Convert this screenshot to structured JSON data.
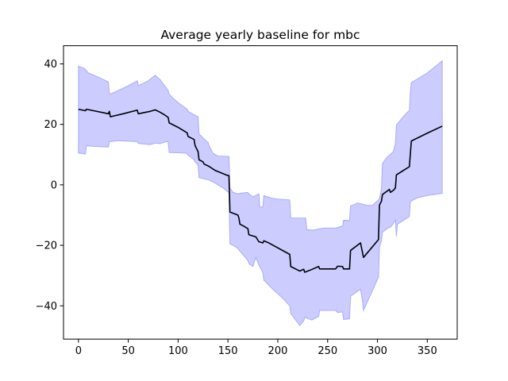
{
  "chart_data": {
    "type": "line",
    "title": "Average yearly baseline for mbc",
    "xlabel": "",
    "ylabel": "",
    "xlim": [
      -15,
      380
    ],
    "ylim": [
      -51,
      46
    ],
    "xticks": [
      0,
      50,
      100,
      150,
      200,
      250,
      300,
      350
    ],
    "yticks": [
      -40,
      -20,
      0,
      20,
      40
    ],
    "grid": false,
    "legend": "none",
    "colors": {
      "line": "#000000",
      "band_fill": "#ccccff",
      "band_edge": "#aaaaff"
    },
    "series": [
      {
        "values": [
          [
            0,
            25
          ],
          [
            7,
            24.5
          ],
          [
            8,
            25
          ],
          [
            30,
            23.5
          ],
          [
            31,
            24.3
          ],
          [
            32,
            22.5
          ],
          [
            45,
            23.5
          ],
          [
            59,
            24.7
          ],
          [
            60,
            23.5
          ],
          [
            72,
            24.3
          ],
          [
            77,
            24.8
          ],
          [
            82,
            24
          ],
          [
            87,
            23
          ],
          [
            90,
            22.3
          ],
          [
            91,
            20.5
          ],
          [
            100,
            19
          ],
          [
            109,
            17.2
          ],
          [
            110,
            16
          ],
          [
            116,
            15
          ],
          [
            117,
            13
          ],
          [
            120,
            11
          ],
          [
            121,
            8.3
          ],
          [
            125,
            7.6
          ],
          [
            126,
            6.9
          ],
          [
            131,
            6.1
          ],
          [
            137,
            4.8
          ],
          [
            148,
            3.3
          ],
          [
            151,
            3
          ],
          [
            152,
            -9
          ],
          [
            160,
            -10
          ],
          [
            161,
            -11
          ],
          [
            162,
            -13
          ],
          [
            165,
            -13.5
          ],
          [
            170,
            -14.5
          ],
          [
            171,
            -16.5
          ],
          [
            178,
            -17.2
          ],
          [
            181,
            -18.8
          ],
          [
            185,
            -19.2
          ],
          [
            186,
            -18.5
          ],
          [
            191,
            -19.2
          ],
          [
            212,
            -23
          ],
          [
            213,
            -27
          ],
          [
            222,
            -28.5
          ],
          [
            226,
            -27.9
          ],
          [
            227,
            -28.9
          ],
          [
            234,
            -28
          ],
          [
            241,
            -27
          ],
          [
            242,
            -27.8
          ],
          [
            258,
            -27.8
          ],
          [
            260,
            -26.9
          ],
          [
            265,
            -27
          ],
          [
            266,
            -27.8
          ],
          [
            272,
            -27.8
          ],
          [
            273,
            -21.7
          ],
          [
            283,
            -19.2
          ],
          [
            286,
            -24
          ],
          [
            301,
            -18.1
          ],
          [
            302,
            -6.7
          ],
          [
            304,
            -5.4
          ],
          [
            305,
            -3.2
          ],
          [
            312,
            -1.5
          ],
          [
            313,
            -2.5
          ],
          [
            316,
            -1.8
          ],
          [
            318,
            -1
          ],
          [
            319,
            3.3
          ],
          [
            332,
            6
          ],
          [
            334,
            14.5
          ],
          [
            350,
            17.1
          ],
          [
            365,
            19.4
          ]
        ]
      },
      {
        "name": "upper_band",
        "values": [
          [
            0,
            39.2
          ],
          [
            6,
            38.5
          ],
          [
            10,
            37
          ],
          [
            20,
            35.6
          ],
          [
            30,
            34
          ],
          [
            31,
            30.5
          ],
          [
            32,
            30
          ],
          [
            40,
            31.2
          ],
          [
            50,
            32.8
          ],
          [
            59,
            34.4
          ],
          [
            60,
            32.8
          ],
          [
            70,
            34.4
          ],
          [
            77,
            36.2
          ],
          [
            82,
            34.8
          ],
          [
            87,
            32.5
          ],
          [
            90,
            31.2
          ],
          [
            91,
            30
          ],
          [
            95,
            28.6
          ],
          [
            100,
            27.2
          ],
          [
            109,
            25
          ],
          [
            110,
            24.3
          ],
          [
            120,
            22.5
          ],
          [
            121,
            16.8
          ],
          [
            130,
            14
          ],
          [
            131,
            13
          ],
          [
            135,
            10.4
          ],
          [
            140,
            9.5
          ],
          [
            151,
            9.4
          ],
          [
            152,
            -1
          ],
          [
            155,
            -2.5
          ],
          [
            161,
            -3
          ],
          [
            162,
            -2.8
          ],
          [
            170,
            -2.5
          ],
          [
            171,
            -3
          ],
          [
            175,
            -4
          ],
          [
            181,
            -3
          ],
          [
            182,
            -7.3
          ],
          [
            185,
            -7.4
          ],
          [
            186,
            -3.6
          ],
          [
            195,
            -4.5
          ],
          [
            200,
            -4.7
          ],
          [
            212,
            -5
          ],
          [
            213,
            -11
          ],
          [
            228,
            -11
          ],
          [
            229,
            -14.8
          ],
          [
            235,
            -15
          ],
          [
            241,
            -14.6
          ],
          [
            246,
            -14.3
          ],
          [
            258,
            -14.3
          ],
          [
            265,
            -13.6
          ],
          [
            266,
            -11.7
          ],
          [
            272,
            -11.8
          ],
          [
            273,
            -7
          ],
          [
            280,
            -6
          ],
          [
            290,
            -6.8
          ],
          [
            295,
            -6.8
          ],
          [
            301,
            -5
          ],
          [
            302,
            -4.5
          ],
          [
            304,
            -1.5
          ],
          [
            305,
            7
          ],
          [
            307,
            8
          ],
          [
            310,
            9.2
          ],
          [
            316,
            11
          ],
          [
            318,
            13.7
          ],
          [
            319,
            19.8
          ],
          [
            325,
            22.2
          ],
          [
            330,
            24
          ],
          [
            332,
            24.5
          ],
          [
            333,
            30.8
          ],
          [
            334,
            33.8
          ],
          [
            340,
            35
          ],
          [
            350,
            37
          ],
          [
            365,
            41
          ]
        ]
      },
      {
        "name": "lower_band",
        "values": [
          [
            0,
            10.5
          ],
          [
            7,
            10.2
          ],
          [
            8,
            13
          ],
          [
            12,
            12.8
          ],
          [
            30,
            12.5
          ],
          [
            31,
            14.3
          ],
          [
            40,
            14.6
          ],
          [
            59,
            14.3
          ],
          [
            60,
            13.7
          ],
          [
            72,
            13.3
          ],
          [
            77,
            13.8
          ],
          [
            82,
            13.6
          ],
          [
            87,
            14.2
          ],
          [
            90,
            14.3
          ],
          [
            91,
            10.7
          ],
          [
            100,
            10.6
          ],
          [
            108,
            10.5
          ],
          [
            110,
            9.8
          ],
          [
            116,
            8.3
          ],
          [
            117,
            7.6
          ],
          [
            120,
            6.6
          ],
          [
            121,
            2.4
          ],
          [
            125,
            2.1
          ],
          [
            126,
            2
          ],
          [
            131,
            1.6
          ],
          [
            137,
            0.6
          ],
          [
            145,
            -1
          ],
          [
            151,
            -2.6
          ],
          [
            152,
            -19.5
          ],
          [
            155,
            -20
          ],
          [
            160,
            -21
          ],
          [
            161,
            -21.5
          ],
          [
            170,
            -25
          ],
          [
            171,
            -26
          ],
          [
            175,
            -27
          ],
          [
            178,
            -24
          ],
          [
            181,
            -26.5
          ],
          [
            185,
            -29
          ],
          [
            186,
            -31.5
          ],
          [
            195,
            -34.5
          ],
          [
            205,
            -37.5
          ],
          [
            212,
            -40
          ],
          [
            213,
            -42.5
          ],
          [
            222,
            -46.5
          ],
          [
            226,
            -45
          ],
          [
            227,
            -43.7
          ],
          [
            234,
            -44.7
          ],
          [
            241,
            -43.5
          ],
          [
            242,
            -41.5
          ],
          [
            258,
            -41.5
          ],
          [
            260,
            -42.2
          ],
          [
            265,
            -42
          ],
          [
            266,
            -44.5
          ],
          [
            272,
            -44.3
          ],
          [
            273,
            -36.8
          ],
          [
            283,
            -34.5
          ],
          [
            285,
            -38.5
          ],
          [
            286,
            -41.5
          ],
          [
            301,
            -30.5
          ],
          [
            302,
            -20.5
          ],
          [
            304,
            -18.5
          ],
          [
            305,
            -15.6
          ],
          [
            312,
            -14
          ],
          [
            313,
            -14
          ],
          [
            316,
            -12.8
          ],
          [
            318,
            -11.5
          ],
          [
            319,
            -17
          ],
          [
            320,
            -13
          ],
          [
            332,
            -10.5
          ],
          [
            333,
            -5.5
          ],
          [
            340,
            -4.3
          ],
          [
            350,
            -3.5
          ],
          [
            365,
            -2.8
          ]
        ]
      }
    ]
  }
}
